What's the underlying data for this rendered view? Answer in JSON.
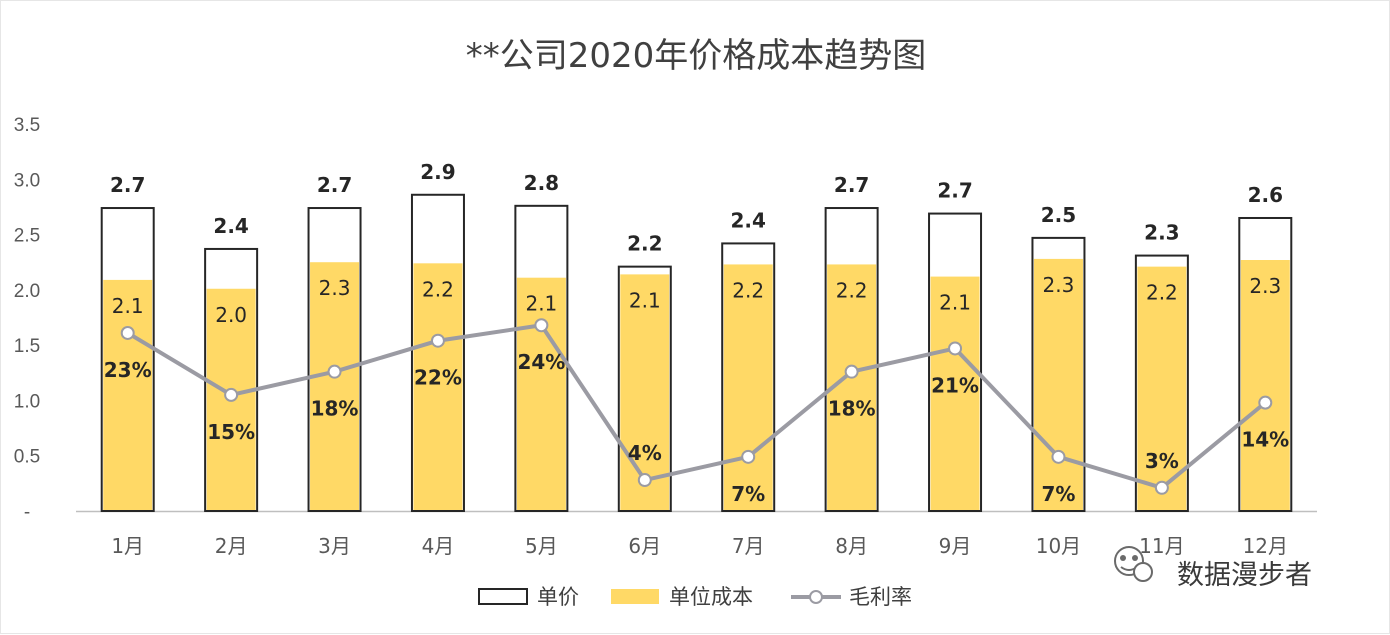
{
  "title": "**公司2020年价格成本趋势图",
  "colors": {
    "price_fill": "#ffffff",
    "price_stroke": "#262626",
    "cost_fill": "#ffd966",
    "line": "#9b9ba3",
    "marker_fill": "#ffffff",
    "axis": "#bfbfbf"
  },
  "chart_data": {
    "type": "bar",
    "categories": [
      "1月",
      "2月",
      "3月",
      "4月",
      "5月",
      "6月",
      "7月",
      "8月",
      "9月",
      "10月",
      "11月",
      "12月"
    ],
    "series": [
      {
        "name": "单价",
        "kind": "bar",
        "values": [
          2.74,
          2.37,
          2.74,
          2.86,
          2.76,
          2.21,
          2.42,
          2.74,
          2.69,
          2.47,
          2.31,
          2.65
        ],
        "labels": [
          "2.7",
          "2.4",
          "2.7",
          "2.9",
          "2.8",
          "2.2",
          "2.4",
          "2.7",
          "2.7",
          "2.5",
          "2.3",
          "2.6"
        ]
      },
      {
        "name": "单位成本",
        "kind": "bar",
        "values": [
          2.09,
          2.01,
          2.25,
          2.24,
          2.11,
          2.14,
          2.23,
          2.23,
          2.12,
          2.28,
          2.21,
          2.27
        ],
        "labels": [
          "2.1",
          "2.0",
          "2.3",
          "2.2",
          "2.1",
          "2.1",
          "2.2",
          "2.2",
          "2.1",
          "2.3",
          "2.2",
          "2.3"
        ]
      },
      {
        "name": "毛利率",
        "kind": "line",
        "values": [
          0.23,
          0.15,
          0.18,
          0.22,
          0.24,
          0.04,
          0.07,
          0.18,
          0.21,
          0.07,
          0.03,
          0.14
        ],
        "labels": [
          "23%",
          "15%",
          "18%",
          "22%",
          "24%",
          "4%",
          "7%",
          "18%",
          "21%",
          "7%",
          "3%",
          "14%"
        ],
        "plot_scale": 7.0
      }
    ],
    "yticks": [
      "-",
      "0.5",
      "1.0",
      "1.5",
      "2.0",
      "2.5",
      "3.0",
      "3.5"
    ],
    "ylim": [
      0,
      3.5
    ],
    "grid": false,
    "legend_position": "bottom"
  },
  "legend": {
    "items": [
      "单价",
      "单位成本",
      "毛利率"
    ]
  },
  "watermark": {
    "text": "数据漫步者",
    "icon": "wechat-icon"
  }
}
